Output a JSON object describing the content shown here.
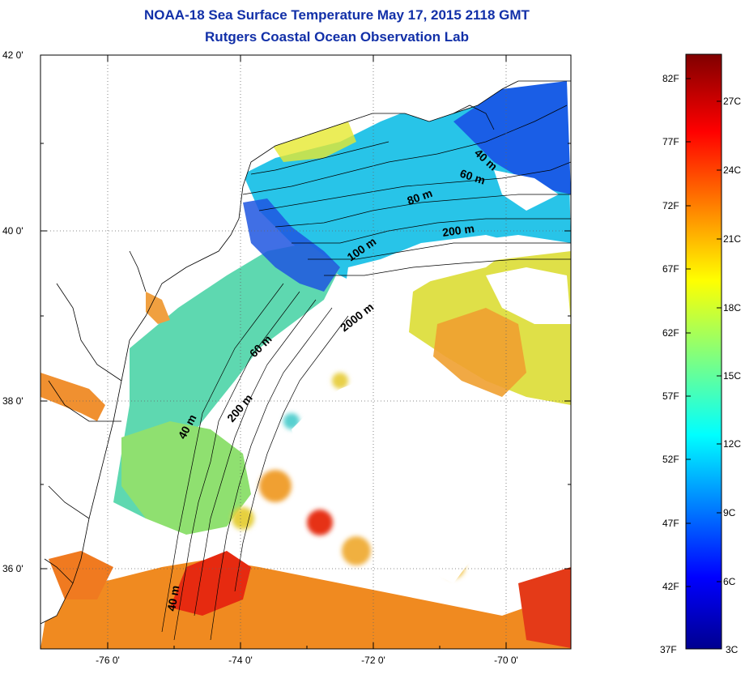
{
  "title": {
    "line1": "NOAA-18 Sea Surface Temperature May 17, 2015 2118 GMT",
    "line2": "Rutgers Coastal Ocean Observation Lab"
  },
  "map": {
    "lat_ticks": [
      "42 0'",
      "40 0'",
      "38 0'",
      "36 0'"
    ],
    "lon_ticks": [
      "-76 0'",
      "-74 0'",
      "-72 0'",
      "-70 0'"
    ],
    "lat_range": [
      35,
      42.2
    ],
    "lon_range": [
      -77,
      -69
    ],
    "grid": "dotted",
    "contour_labels": [
      "40 m",
      "60 m",
      "80 m",
      "100 m",
      "200 m",
      "2000 m",
      "60 m",
      "200 m",
      "40 m",
      "40 m"
    ],
    "colors": {
      "land": "#ffffff",
      "cloud": "#ffffff",
      "coastline": "#000000",
      "title": "#1230a8"
    }
  },
  "colorbar": {
    "f_labels": [
      "82F",
      "77F",
      "72F",
      "67F",
      "62F",
      "57F",
      "52F",
      "47F",
      "42F",
      "37F"
    ],
    "c_labels": [
      "27C",
      "24C",
      "21C",
      "18C",
      "15C",
      "12C",
      "9C",
      "6C",
      "3C"
    ],
    "range_f": [
      37,
      84
    ],
    "colormap": "jet"
  }
}
